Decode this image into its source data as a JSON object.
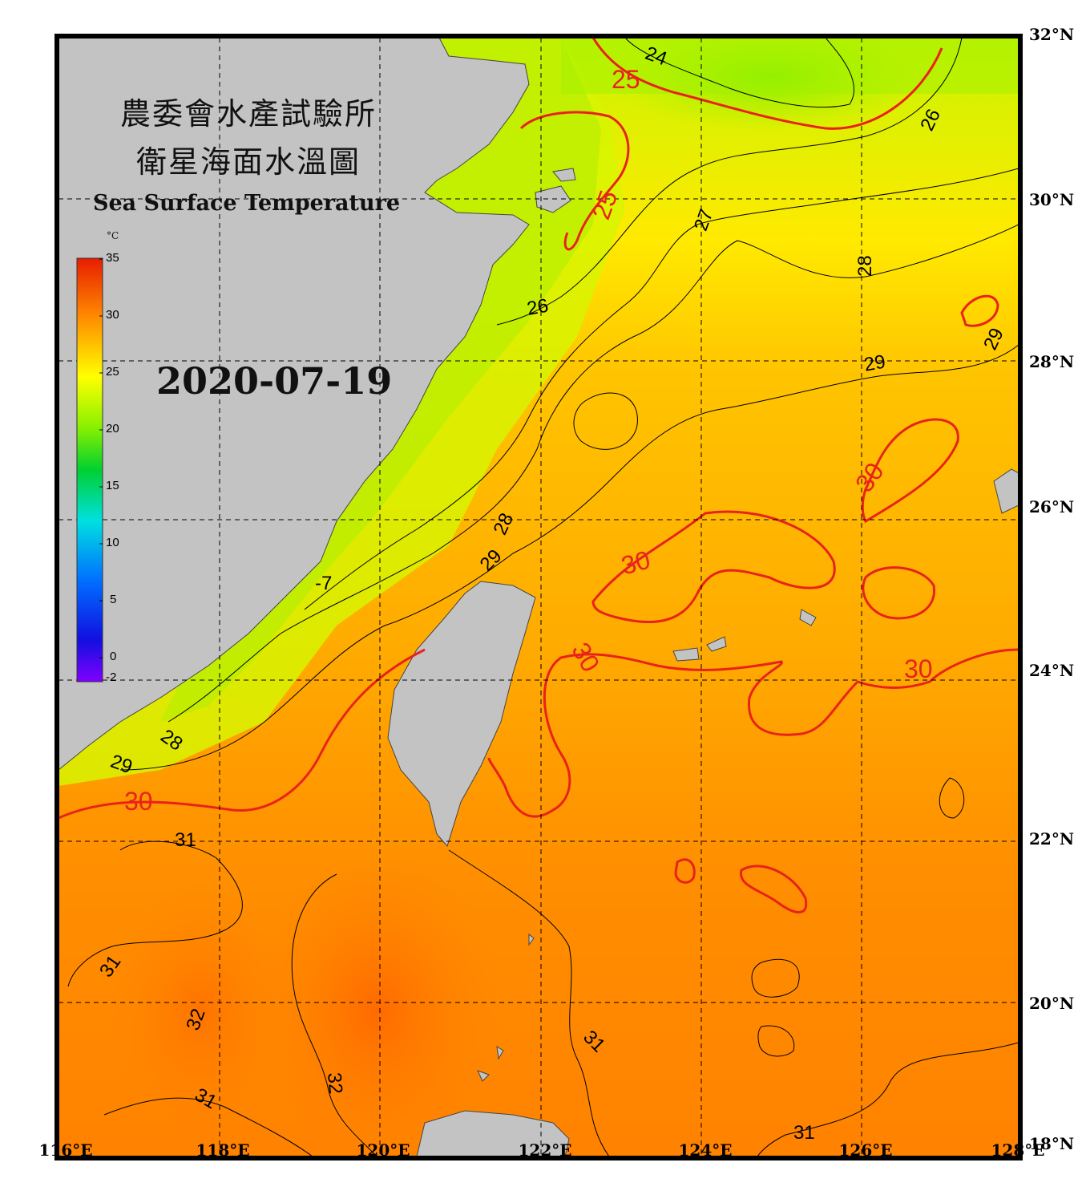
{
  "title": {
    "zh_line1": "農委會水產試驗所",
    "zh_line2": "衛星海面水溫圖",
    "en": "Sea Surface Temperature"
  },
  "date": "2020-07-19",
  "colorbar": {
    "unit": "°C",
    "ticks": [
      "35",
      "30",
      "25",
      "20",
      "15",
      "10",
      "5",
      "0",
      "-2"
    ],
    "range": [
      -2,
      35
    ]
  },
  "axes": {
    "latitude_labels": [
      "32°N",
      "30°N",
      "28°N",
      "26°N",
      "24°N",
      "22°N",
      "20°N",
      "18°N"
    ],
    "longitude_labels": [
      "116°E",
      "118°E",
      "120°E",
      "122°E",
      "124°E",
      "126°E",
      "128°E"
    ],
    "lat_range": [
      18,
      32
    ],
    "lon_range": [
      116,
      128
    ],
    "grid": "dashed"
  },
  "contour_labels": {
    "black": [
      "24",
      "26",
      "27",
      "26",
      "28",
      "29",
      "29",
      "28",
      "29",
      "28",
      "29",
      "31",
      "31",
      "32",
      "32",
      "31",
      "31",
      "31",
      "-7"
    ],
    "red": [
      "25",
      "25",
      "30",
      "30",
      "30",
      "30",
      "30"
    ]
  },
  "colors": {
    "land": "#c3c3c3",
    "contour_major": "#e8231b",
    "contour_minor": "#000000",
    "cool_water": "#a8f000",
    "warm_water": "#ff8c00",
    "frame": "#000000"
  }
}
